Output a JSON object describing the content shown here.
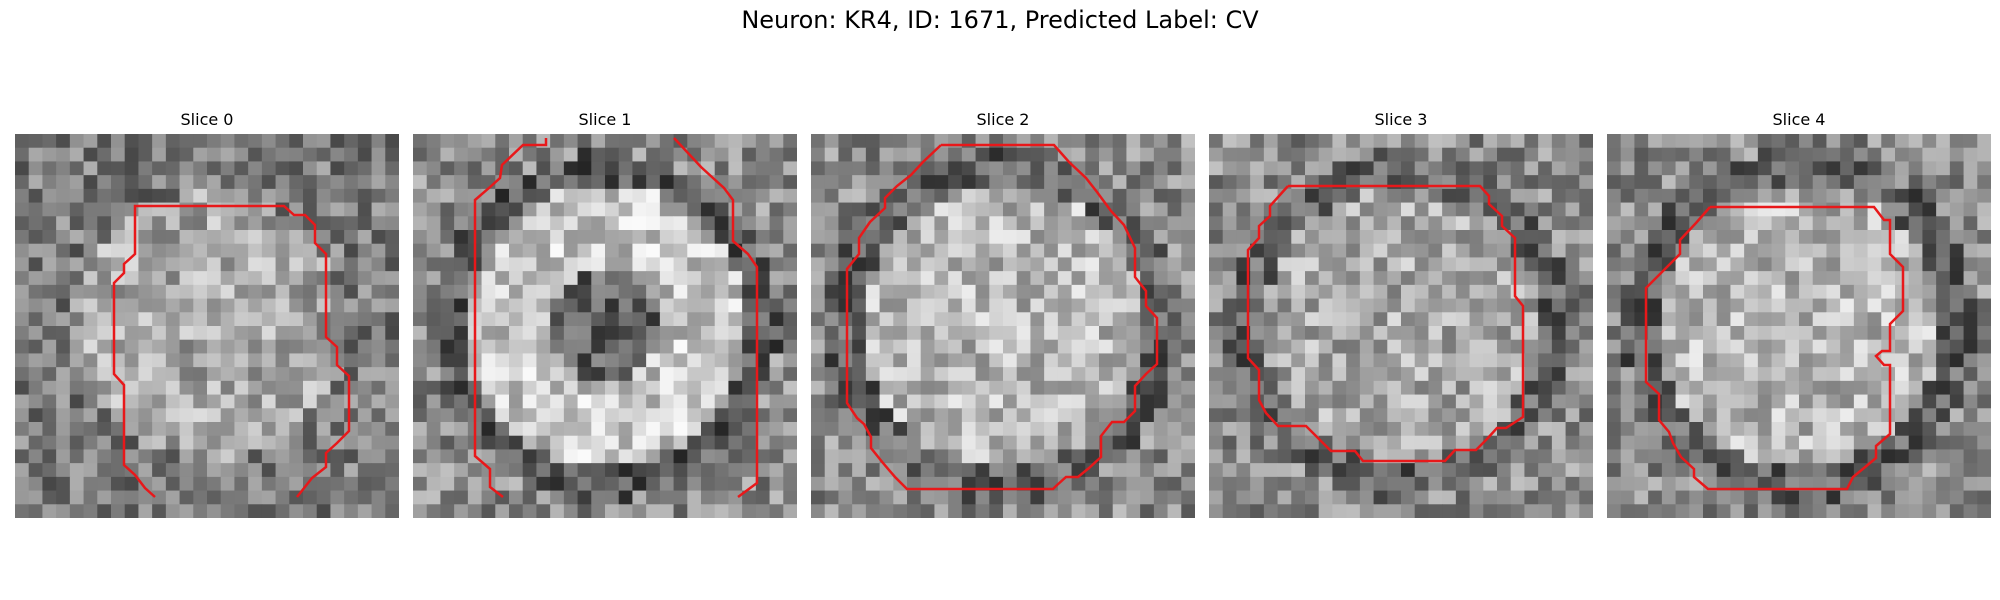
{
  "figure": {
    "title": "Neuron: KR4, ID: 1671, Predicted Label: CV"
  },
  "panels": [
    {
      "title": "Slice 0",
      "seed": 11,
      "pattern": "uniform"
    },
    {
      "title": "Slice 1",
      "seed": 23,
      "pattern": "ring"
    },
    {
      "title": "Slice 2",
      "seed": 37,
      "pattern": "disk"
    },
    {
      "title": "Slice 3",
      "seed": 41,
      "pattern": "mottled"
    },
    {
      "title": "Slice 4",
      "seed": 59,
      "pattern": "disk"
    }
  ],
  "colors": {
    "contour": "#e8181a"
  }
}
